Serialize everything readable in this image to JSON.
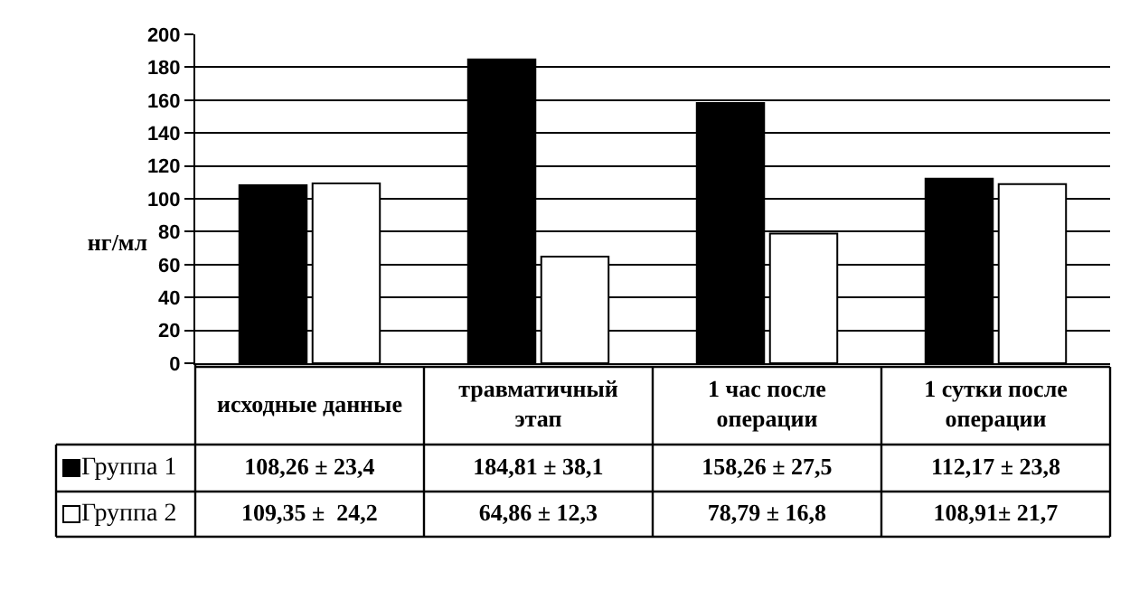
{
  "chart_data": {
    "type": "bar",
    "ylabel": "нг/мл",
    "categories": [
      "исходные данные",
      "травматичный этап",
      "1 час после операции",
      "1 сутки после операции"
    ],
    "series": [
      {
        "name": "Группа 1",
        "color": "#000000",
        "values": [
          108.26,
          184.81,
          158.26,
          112.17
        ],
        "value_labels": [
          "108,26 ± 23,4",
          "184,81 ± 38,1",
          "158,26 ± 27,5",
          "112,17 ± 23,8"
        ]
      },
      {
        "name": "Группа 2",
        "color": "#ffffff",
        "values": [
          109.35,
          64.86,
          78.79,
          108.91
        ],
        "value_labels": [
          "109,35 ±  24,2",
          "64,86 ± 12,3",
          "78,79 ± 16,8",
          "108,91± 21,7"
        ]
      }
    ],
    "ylim": [
      0,
      200
    ],
    "yticks": [
      0,
      20,
      40,
      60,
      80,
      100,
      120,
      140,
      160,
      180,
      200
    ],
    "grid": "y",
    "legend": "bottom left"
  }
}
